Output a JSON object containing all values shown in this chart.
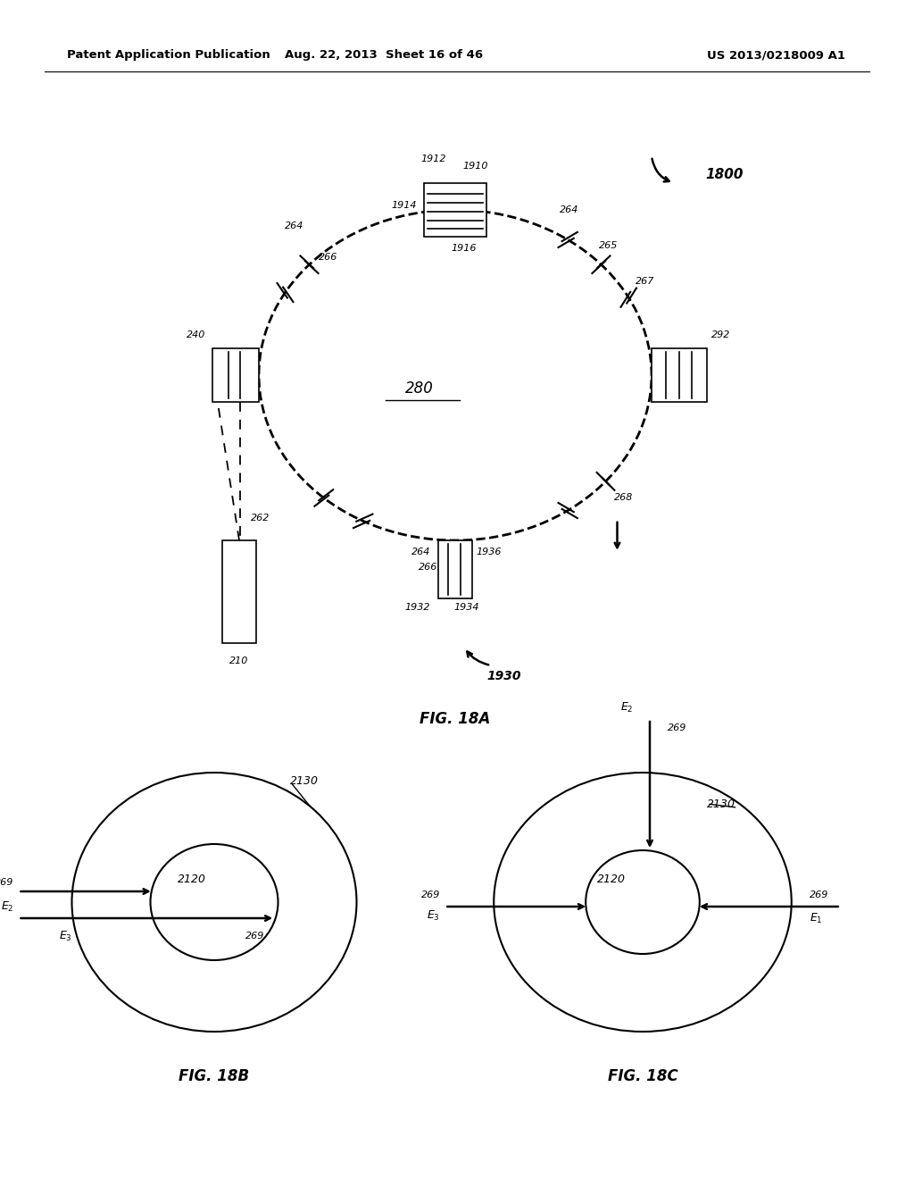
{
  "bg_color": "#ffffff",
  "header_left": "Patent Application Publication",
  "header_mid": "Aug. 22, 2013  Sheet 16 of 46",
  "header_right": "US 2013/0218009 A1",
  "fig18a_label": "FIG. 18A",
  "fig18b_label": "FIG. 18B",
  "fig18c_label": "FIG. 18C",
  "label_1800": "1800",
  "label_280": "280",
  "label_240": "240",
  "label_292": "292",
  "label_210": "210",
  "label_262": "262",
  "label_264": "264",
  "label_265": "265",
  "label_266": "266",
  "label_267": "267",
  "label_268": "268",
  "label_1910": "1910",
  "label_1912": "1912",
  "label_1914": "1914",
  "label_1916": "1916",
  "label_1930": "1930",
  "label_1932": "1932",
  "label_1934": "1934",
  "label_1936": "1936",
  "label_2120": "2120",
  "label_2130": "2130",
  "label_269": "269"
}
